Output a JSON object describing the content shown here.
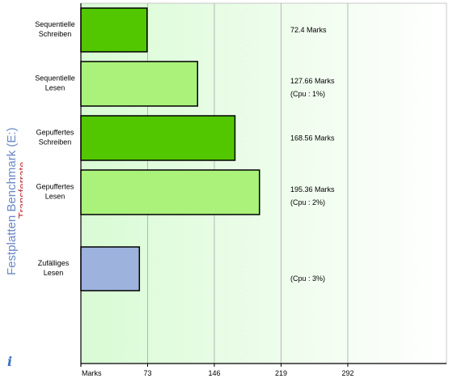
{
  "window": {
    "title": "Festplatten Benchmark (E:)",
    "subtitle": "Transferrate"
  },
  "colors": {
    "dark_green": "#52c700",
    "light_green": "#aaf27a",
    "blue": "#9db3de",
    "title_blue": "#6b87c4",
    "subtitle_red": "#c0303a",
    "grid": "#b8b8b8"
  },
  "icons": {
    "info": "info-icon"
  },
  "chart_data": {
    "type": "bar",
    "orientation": "horizontal",
    "xlabel": "Marks",
    "xticks": [
      73,
      146,
      219,
      292
    ],
    "xlim": [
      0,
      400
    ],
    "categories": [
      {
        "label": [
          "Sequentielle",
          "Schreiben"
        ],
        "value": 72.4,
        "value_text": "72.4 Marks",
        "cpu_text": "",
        "color": "dark_green"
      },
      {
        "label": [
          "Sequentielle",
          "Lesen"
        ],
        "value": 127.66,
        "value_text": "127.66 Marks",
        "cpu_text": "(Cpu : 1%)",
        "color": "light_green"
      },
      {
        "label": [
          "Gepuffertes",
          "Schreiben"
        ],
        "value": 168.56,
        "value_text": "168.56 Marks",
        "cpu_text": "",
        "color": "dark_green"
      },
      {
        "label": [
          "Gepuffertes",
          "Lesen"
        ],
        "value": 195.36,
        "value_text": "195.36 Marks",
        "cpu_text": "(Cpu : 2%)",
        "color": "light_green"
      },
      {
        "label": [
          "Zufälliges",
          "Lesen"
        ],
        "value": 64,
        "value_text": "",
        "cpu_text": "(Cpu : 3%)",
        "color": "blue"
      }
    ]
  }
}
